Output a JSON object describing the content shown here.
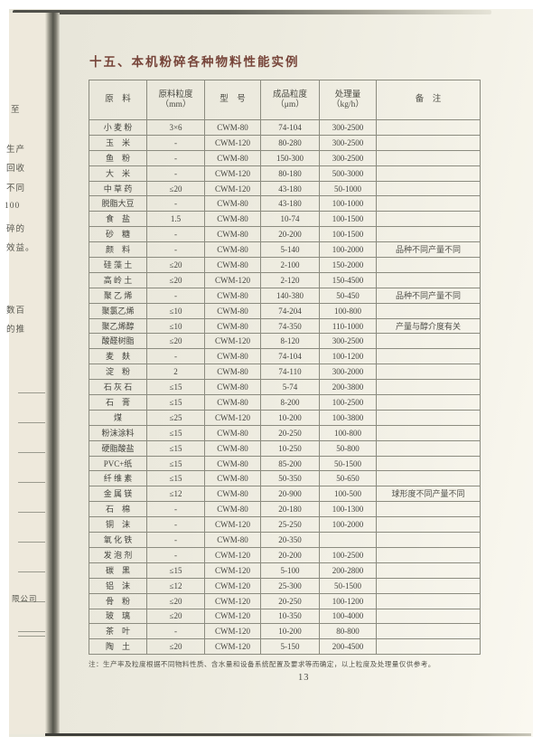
{
  "page": {
    "title": "十五、本机粉碎各种物料性能实例",
    "page_number": "13",
    "footnote": "注：生产率及粒度根据不同物料性质、含水量和设备系统配置及要求等而确定，以上粒度及处理量仅供参考。"
  },
  "table": {
    "headers": {
      "material": "原　料",
      "feed_line1": "原料粒度",
      "feed_line2": "（mm）",
      "model": "型　号",
      "product_line1": "成品粒度",
      "product_line2": "（μm）",
      "capacity_line1": "处理量",
      "capacity_line2": "（kg/h）",
      "note": "备　注"
    },
    "rows": [
      {
        "material": "小 麦 粉",
        "feed": "3×6",
        "model": "CWM-80",
        "product": "74-104",
        "capacity": "300-2500",
        "note": ""
      },
      {
        "material": "玉　米",
        "feed": "-",
        "model": "CWM-120",
        "product": "80-280",
        "capacity": "300-2500",
        "note": ""
      },
      {
        "material": "鱼　粉",
        "feed": "-",
        "model": "CWM-80",
        "product": "150-300",
        "capacity": "300-2500",
        "note": ""
      },
      {
        "material": "大　米",
        "feed": "-",
        "model": "CWM-120",
        "product": "80-180",
        "capacity": "500-3000",
        "note": ""
      },
      {
        "material": "中 草 药",
        "feed": "≤20",
        "model": "CWM-120",
        "product": "43-180",
        "capacity": "50-1000",
        "note": ""
      },
      {
        "material": "脱脂大豆",
        "feed": "-",
        "model": "CWM-80",
        "product": "43-180",
        "capacity": "100-1000",
        "note": ""
      },
      {
        "material": "食　盐",
        "feed": "1.5",
        "model": "CWM-80",
        "product": "10-74",
        "capacity": "100-1500",
        "note": ""
      },
      {
        "material": "砂　糖",
        "feed": "-",
        "model": "CWM-80",
        "product": "20-200",
        "capacity": "100-1500",
        "note": ""
      },
      {
        "material": "颜　料",
        "feed": "-",
        "model": "CWM-80",
        "product": "5-140",
        "capacity": "100-2000",
        "note": "品种不同产量不同"
      },
      {
        "material": "硅 藻 土",
        "feed": "≤20",
        "model": "CWM-80",
        "product": "2-100",
        "capacity": "150-2000",
        "note": ""
      },
      {
        "material": "高 岭 土",
        "feed": "≤20",
        "model": "CWM-120",
        "product": "2-120",
        "capacity": "150-4500",
        "note": ""
      },
      {
        "material": "聚 乙 烯",
        "feed": "-",
        "model": "CWM-80",
        "product": "140-380",
        "capacity": "50-450",
        "note": "品种不同产量不同"
      },
      {
        "material": "聚氯乙烯",
        "feed": "≤10",
        "model": "CWM-80",
        "product": "74-204",
        "capacity": "100-800",
        "note": ""
      },
      {
        "material": "聚乙烯醇",
        "feed": "≤10",
        "model": "CWM-80",
        "product": "74-350",
        "capacity": "110-1000",
        "note": "产量与醇介度有关"
      },
      {
        "material": "酸醛树脂",
        "feed": "≤20",
        "model": "CWM-120",
        "product": "8-120",
        "capacity": "300-2500",
        "note": ""
      },
      {
        "material": "麦　麸",
        "feed": "-",
        "model": "CWM-80",
        "product": "74-104",
        "capacity": "100-1200",
        "note": ""
      },
      {
        "material": "淀　粉",
        "feed": "2",
        "model": "CWM-80",
        "product": "74-110",
        "capacity": "300-2000",
        "note": ""
      },
      {
        "material": "石 灰 石",
        "feed": "≤15",
        "model": "CWM-80",
        "product": "5-74",
        "capacity": "200-3800",
        "note": ""
      },
      {
        "material": "石　膏",
        "feed": "≤15",
        "model": "CWM-80",
        "product": "8-200",
        "capacity": "100-2500",
        "note": ""
      },
      {
        "material": "煤",
        "feed": "≤25",
        "model": "CWM-120",
        "product": "10-200",
        "capacity": "100-3800",
        "note": ""
      },
      {
        "material": "粉沫涂料",
        "feed": "≤15",
        "model": "CWM-80",
        "product": "20-250",
        "capacity": "100-800",
        "note": ""
      },
      {
        "material": "硬脂酸盐",
        "feed": "≤15",
        "model": "CWM-80",
        "product": "10-250",
        "capacity": "50-800",
        "note": ""
      },
      {
        "material": "PVC+纸",
        "feed": "≤15",
        "model": "CWM-80",
        "product": "85-200",
        "capacity": "50-1500",
        "note": ""
      },
      {
        "material": "纤 维 素",
        "feed": "≤15",
        "model": "CWM-80",
        "product": "50-350",
        "capacity": "50-650",
        "note": ""
      },
      {
        "material": "金 属 镁",
        "feed": "≤12",
        "model": "CWM-80",
        "product": "20-900",
        "capacity": "100-500",
        "note": "球形度不同产量不同"
      },
      {
        "material": "石　棉",
        "feed": "-",
        "model": "CWM-80",
        "product": "20-180",
        "capacity": "100-1300",
        "note": ""
      },
      {
        "material": "铜　沫",
        "feed": "-",
        "model": "CWM-120",
        "product": "25-250",
        "capacity": "100-2000",
        "note": ""
      },
      {
        "material": "氧 化 铁",
        "feed": "-",
        "model": "CWM-80",
        "product": "20-350",
        "capacity": "",
        "note": ""
      },
      {
        "material": "发 泡 剂",
        "feed": "-",
        "model": "CWM-120",
        "product": "20-200",
        "capacity": "100-2500",
        "note": ""
      },
      {
        "material": "碳　黑",
        "feed": "≤15",
        "model": "CWM-120",
        "product": "5-100",
        "capacity": "200-2800",
        "note": ""
      },
      {
        "material": "铝　沫",
        "feed": "≤12",
        "model": "CWM-120",
        "product": "25-300",
        "capacity": "50-1500",
        "note": ""
      },
      {
        "material": "骨　粉",
        "feed": "≤20",
        "model": "CWM-120",
        "product": "20-250",
        "capacity": "100-1200",
        "note": ""
      },
      {
        "material": "玻　璃",
        "feed": "≤20",
        "model": "CWM-120",
        "product": "10-350",
        "capacity": "100-4000",
        "note": ""
      },
      {
        "material": "茶　叶",
        "feed": "-",
        "model": "CWM-120",
        "product": "10-200",
        "capacity": "80-800",
        "note": ""
      },
      {
        "material": "陶　土",
        "feed": "≤20",
        "model": "CWM-120",
        "product": "5-150",
        "capacity": "200-4500",
        "note": ""
      }
    ]
  },
  "left_margin": {
    "fragments": {
      "f0": "至",
      "f1": "生产",
      "f2": "回收",
      "f3": "不同",
      "f4": "100",
      "f5": "碎的",
      "f6": "效益。",
      "f7": "数百",
      "f8": "的推",
      "f9": "限公司"
    }
  }
}
